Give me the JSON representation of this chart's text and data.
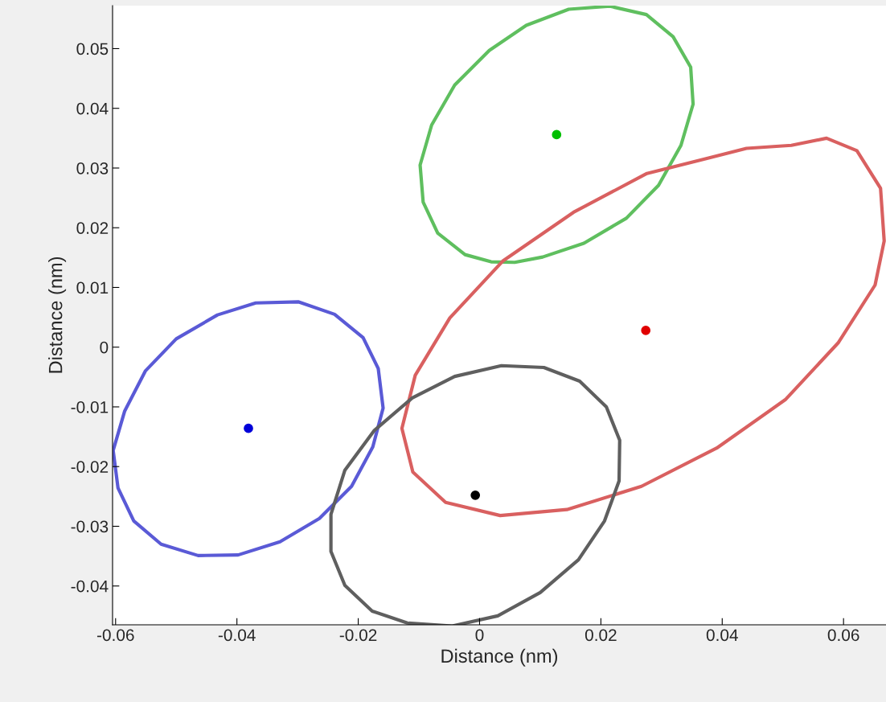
{
  "chart_data": {
    "type": "scatter",
    "xlabel": "Distance (nm)",
    "ylabel": "Distance (nm)",
    "xlim": [
      -0.0605,
      0.067
    ],
    "ylim": [
      -0.0465,
      0.0572
    ],
    "xticks": [
      -0.06,
      -0.04,
      -0.02,
      0,
      0.02,
      0.04,
      0.06
    ],
    "yticks": [
      -0.04,
      -0.03,
      -0.02,
      -0.01,
      0,
      0.01,
      0.02,
      0.03,
      0.04,
      0.05
    ],
    "grid": false,
    "legend": false,
    "marker": "circle",
    "series": [
      {
        "color": "#00bf00",
        "x": [
          0.0127
        ],
        "values": [
          0.0356
        ]
      },
      {
        "color": "#e00000",
        "x": [
          0.0274
        ],
        "values": [
          0.0028
        ]
      },
      {
        "color": "#0000d9",
        "x": [
          -0.0381
        ],
        "values": [
          -0.0136
        ]
      },
      {
        "color": "#000000",
        "x": [
          -0.0007
        ],
        "values": [
          -0.0248
        ]
      }
    ]
  }
}
